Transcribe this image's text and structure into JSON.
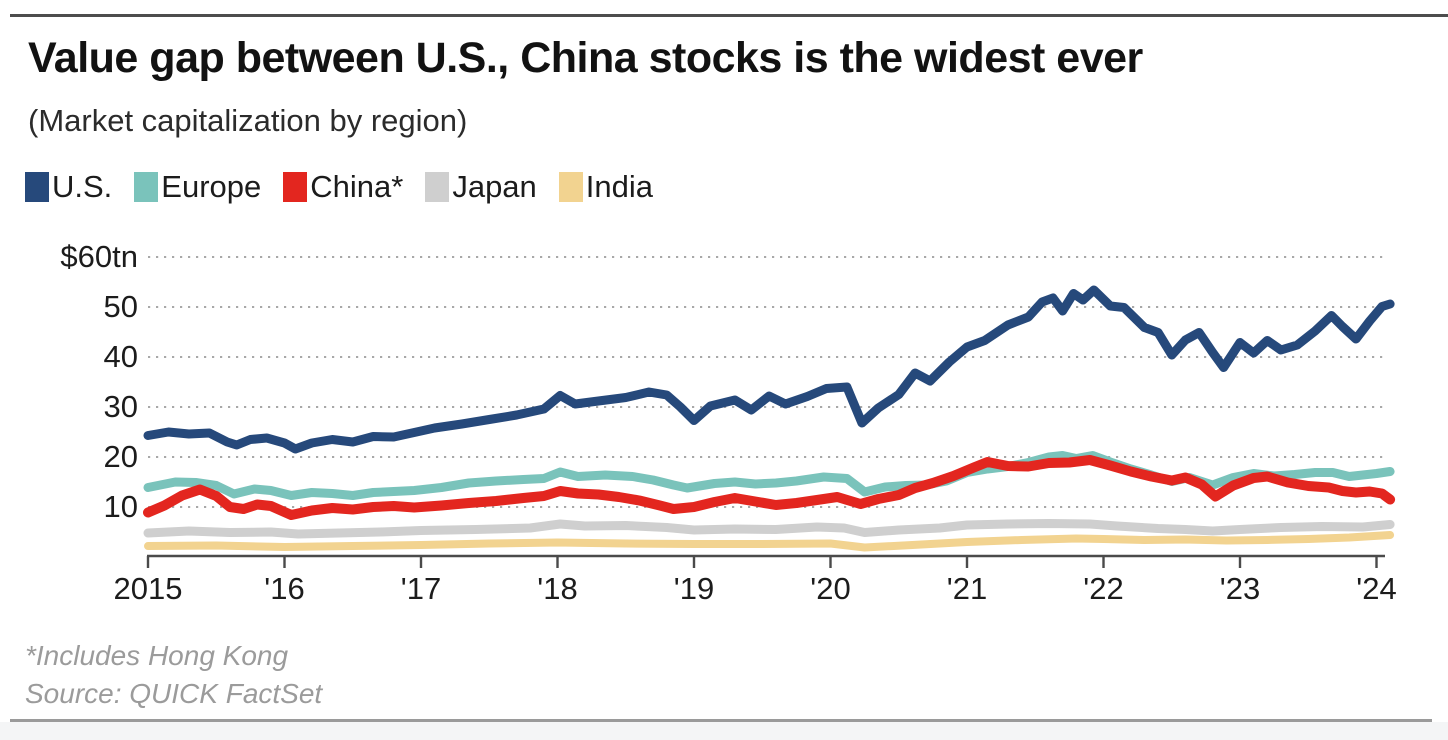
{
  "page": {
    "title": "Value gap between U.S., China stocks is the widest ever",
    "subtitle": "(Market capitalization by region)",
    "footnote": "*Includes Hong Kong",
    "source": "Source: QUICK FactSet"
  },
  "colors": {
    "us": "#26497B",
    "europe": "#7AC3BB",
    "china": "#E3261F",
    "japan": "#CFCFCF",
    "india": "#F2D390",
    "grid": "#A8A8A8",
    "axis": "#4A4A4A",
    "title_text": "#121212",
    "footnote_text": "#9B9B9B"
  },
  "legend": {
    "items": [
      {
        "id": "us",
        "label": "U.S.",
        "color": "#26497B"
      },
      {
        "id": "europe",
        "label": "Europe",
        "color": "#7AC3BB"
      },
      {
        "id": "china",
        "label": "China*",
        "color": "#E3261F"
      },
      {
        "id": "japan",
        "label": "Japan",
        "color": "#CFCFCF"
      },
      {
        "id": "india",
        "label": "India",
        "color": "#F2D390"
      }
    ]
  },
  "chart_data": {
    "type": "line",
    "title": "Value gap between U.S., China stocks is the widest ever",
    "subtitle": "(Market capitalization by region)",
    "unit": "trillion USD",
    "grid": "dotted-horizontal",
    "legend_position": "top",
    "y_axis": {
      "min": 0,
      "max": 62,
      "tick_values": [
        60,
        50,
        40,
        30,
        20,
        10
      ],
      "tick_labels": [
        "$60tn",
        "50",
        "40",
        "30",
        "20",
        "10"
      ]
    },
    "x_axis": {
      "min": 2015,
      "max": 2024.15,
      "tick_values": [
        2015,
        2016,
        2017,
        2018,
        2019,
        2020,
        2021,
        2022,
        2023,
        2024
      ],
      "tick_labels": [
        "2015",
        "'16",
        "'17",
        "'18",
        "'19",
        "'20",
        "'21",
        "'22",
        "'23",
        "'24"
      ]
    },
    "series": [
      {
        "id": "india",
        "name": "India",
        "color": "#F2D390",
        "stroke_width": 8,
        "points": [
          [
            2015.0,
            2.2
          ],
          [
            2015.5,
            2.3
          ],
          [
            2016.0,
            2.0
          ],
          [
            2016.5,
            2.2
          ],
          [
            2017.0,
            2.4
          ],
          [
            2017.5,
            2.7
          ],
          [
            2018.0,
            2.9
          ],
          [
            2018.5,
            2.7
          ],
          [
            2019.0,
            2.6
          ],
          [
            2019.5,
            2.6
          ],
          [
            2020.0,
            2.7
          ],
          [
            2020.25,
            1.9
          ],
          [
            2020.6,
            2.4
          ],
          [
            2021.0,
            3.0
          ],
          [
            2021.4,
            3.4
          ],
          [
            2021.8,
            3.7
          ],
          [
            2022.0,
            3.6
          ],
          [
            2022.3,
            3.4
          ],
          [
            2022.6,
            3.5
          ],
          [
            2022.9,
            3.3
          ],
          [
            2023.2,
            3.4
          ],
          [
            2023.5,
            3.6
          ],
          [
            2023.8,
            3.9
          ],
          [
            2024.1,
            4.4
          ]
        ]
      },
      {
        "id": "japan",
        "name": "Japan",
        "color": "#CFCFCF",
        "stroke_width": 9,
        "points": [
          [
            2015.0,
            4.8
          ],
          [
            2015.3,
            5.2
          ],
          [
            2015.6,
            4.9
          ],
          [
            2015.9,
            5.0
          ],
          [
            2016.1,
            4.6
          ],
          [
            2016.4,
            4.8
          ],
          [
            2016.7,
            5.0
          ],
          [
            2017.0,
            5.3
          ],
          [
            2017.4,
            5.5
          ],
          [
            2017.8,
            5.8
          ],
          [
            2018.02,
            6.6
          ],
          [
            2018.2,
            6.2
          ],
          [
            2018.5,
            6.3
          ],
          [
            2018.8,
            5.9
          ],
          [
            2019.0,
            5.4
          ],
          [
            2019.3,
            5.6
          ],
          [
            2019.6,
            5.5
          ],
          [
            2019.9,
            6.0
          ],
          [
            2020.1,
            5.8
          ],
          [
            2020.25,
            4.9
          ],
          [
            2020.5,
            5.4
          ],
          [
            2020.8,
            5.8
          ],
          [
            2021.0,
            6.4
          ],
          [
            2021.3,
            6.6
          ],
          [
            2021.6,
            6.7
          ],
          [
            2021.9,
            6.6
          ],
          [
            2022.1,
            6.2
          ],
          [
            2022.4,
            5.7
          ],
          [
            2022.6,
            5.5
          ],
          [
            2022.8,
            5.2
          ],
          [
            2023.0,
            5.5
          ],
          [
            2023.3,
            5.9
          ],
          [
            2023.6,
            6.1
          ],
          [
            2023.9,
            6.0
          ],
          [
            2024.1,
            6.5
          ]
        ]
      },
      {
        "id": "europe",
        "name": "Europe",
        "color": "#7AC3BB",
        "stroke_width": 9,
        "points": [
          [
            2015.0,
            13.9
          ],
          [
            2015.2,
            15.0
          ],
          [
            2015.35,
            14.9
          ],
          [
            2015.5,
            14.3
          ],
          [
            2015.63,
            12.6
          ],
          [
            2015.78,
            13.6
          ],
          [
            2015.9,
            13.3
          ],
          [
            2016.05,
            12.3
          ],
          [
            2016.2,
            12.9
          ],
          [
            2016.35,
            12.7
          ],
          [
            2016.5,
            12.3
          ],
          [
            2016.65,
            12.9
          ],
          [
            2016.8,
            13.1
          ],
          [
            2016.95,
            13.3
          ],
          [
            2017.15,
            13.9
          ],
          [
            2017.35,
            14.8
          ],
          [
            2017.55,
            15.2
          ],
          [
            2017.75,
            15.5
          ],
          [
            2017.9,
            15.7
          ],
          [
            2018.02,
            17.0
          ],
          [
            2018.15,
            16.1
          ],
          [
            2018.35,
            16.4
          ],
          [
            2018.55,
            16.1
          ],
          [
            2018.7,
            15.4
          ],
          [
            2018.85,
            14.4
          ],
          [
            2018.95,
            13.8
          ],
          [
            2019.15,
            14.7
          ],
          [
            2019.3,
            15.0
          ],
          [
            2019.45,
            14.6
          ],
          [
            2019.6,
            14.8
          ],
          [
            2019.75,
            15.2
          ],
          [
            2019.95,
            16.0
          ],
          [
            2020.12,
            15.7
          ],
          [
            2020.25,
            13.0
          ],
          [
            2020.4,
            14.0
          ],
          [
            2020.55,
            14.3
          ],
          [
            2020.7,
            14.4
          ],
          [
            2020.85,
            15.2
          ],
          [
            2021.0,
            16.9
          ],
          [
            2021.15,
            17.6
          ],
          [
            2021.3,
            18.1
          ],
          [
            2021.45,
            18.9
          ],
          [
            2021.6,
            20.0
          ],
          [
            2021.7,
            20.3
          ],
          [
            2021.8,
            19.7
          ],
          [
            2021.92,
            20.3
          ],
          [
            2022.05,
            19.0
          ],
          [
            2022.2,
            17.6
          ],
          [
            2022.35,
            16.4
          ],
          [
            2022.5,
            15.1
          ],
          [
            2022.63,
            15.9
          ],
          [
            2022.8,
            14.4
          ],
          [
            2022.95,
            15.9
          ],
          [
            2023.1,
            16.7
          ],
          [
            2023.25,
            16.2
          ],
          [
            2023.4,
            16.5
          ],
          [
            2023.55,
            16.9
          ],
          [
            2023.68,
            16.9
          ],
          [
            2023.8,
            16.1
          ],
          [
            2023.9,
            16.4
          ],
          [
            2024.0,
            16.7
          ],
          [
            2024.1,
            17.1
          ]
        ]
      },
      {
        "id": "china",
        "name": "China*",
        "color": "#E3261F",
        "stroke_width": 10,
        "points": [
          [
            2015.0,
            8.9
          ],
          [
            2015.12,
            10.3
          ],
          [
            2015.25,
            12.3
          ],
          [
            2015.38,
            13.5
          ],
          [
            2015.5,
            12.2
          ],
          [
            2015.6,
            10.0
          ],
          [
            2015.7,
            9.6
          ],
          [
            2015.8,
            10.5
          ],
          [
            2015.9,
            10.2
          ],
          [
            2016.05,
            8.4
          ],
          [
            2016.2,
            9.3
          ],
          [
            2016.35,
            9.8
          ],
          [
            2016.5,
            9.5
          ],
          [
            2016.65,
            10.0
          ],
          [
            2016.8,
            10.2
          ],
          [
            2016.95,
            9.9
          ],
          [
            2017.15,
            10.3
          ],
          [
            2017.35,
            10.8
          ],
          [
            2017.55,
            11.2
          ],
          [
            2017.75,
            11.8
          ],
          [
            2017.9,
            12.2
          ],
          [
            2018.02,
            13.2
          ],
          [
            2018.15,
            12.7
          ],
          [
            2018.3,
            12.5
          ],
          [
            2018.45,
            12.0
          ],
          [
            2018.6,
            11.3
          ],
          [
            2018.75,
            10.3
          ],
          [
            2018.85,
            9.6
          ],
          [
            2019.0,
            10.0
          ],
          [
            2019.15,
            11.0
          ],
          [
            2019.3,
            11.8
          ],
          [
            2019.45,
            11.1
          ],
          [
            2019.6,
            10.4
          ],
          [
            2019.75,
            10.8
          ],
          [
            2019.9,
            11.4
          ],
          [
            2020.05,
            12.0
          ],
          [
            2020.22,
            10.6
          ],
          [
            2020.35,
            11.6
          ],
          [
            2020.5,
            12.4
          ],
          [
            2020.62,
            13.8
          ],
          [
            2020.75,
            14.8
          ],
          [
            2020.9,
            16.2
          ],
          [
            2021.05,
            17.9
          ],
          [
            2021.15,
            19.0
          ],
          [
            2021.3,
            18.2
          ],
          [
            2021.45,
            18.1
          ],
          [
            2021.6,
            18.8
          ],
          [
            2021.75,
            18.9
          ],
          [
            2021.9,
            19.4
          ],
          [
            2022.05,
            18.3
          ],
          [
            2022.2,
            17.1
          ],
          [
            2022.35,
            16.1
          ],
          [
            2022.5,
            15.3
          ],
          [
            2022.6,
            15.9
          ],
          [
            2022.72,
            14.5
          ],
          [
            2022.82,
            12.1
          ],
          [
            2022.95,
            14.3
          ],
          [
            2023.1,
            15.8
          ],
          [
            2023.2,
            16.1
          ],
          [
            2023.35,
            14.9
          ],
          [
            2023.5,
            14.2
          ],
          [
            2023.65,
            13.9
          ],
          [
            2023.75,
            13.2
          ],
          [
            2023.85,
            12.9
          ],
          [
            2023.95,
            13.1
          ],
          [
            2024.04,
            12.7
          ],
          [
            2024.1,
            11.5
          ]
        ]
      },
      {
        "id": "us",
        "name": "U.S.",
        "color": "#26497B",
        "stroke_width": 9,
        "points": [
          [
            2015.0,
            24.3
          ],
          [
            2015.15,
            25.0
          ],
          [
            2015.3,
            24.6
          ],
          [
            2015.45,
            24.8
          ],
          [
            2015.58,
            23.0
          ],
          [
            2015.65,
            22.4
          ],
          [
            2015.75,
            23.5
          ],
          [
            2015.87,
            23.8
          ],
          [
            2016.0,
            22.8
          ],
          [
            2016.08,
            21.6
          ],
          [
            2016.2,
            22.8
          ],
          [
            2016.35,
            23.5
          ],
          [
            2016.5,
            23.0
          ],
          [
            2016.65,
            24.1
          ],
          [
            2016.8,
            24.0
          ],
          [
            2016.95,
            24.9
          ],
          [
            2017.1,
            25.8
          ],
          [
            2017.3,
            26.6
          ],
          [
            2017.5,
            27.5
          ],
          [
            2017.7,
            28.4
          ],
          [
            2017.9,
            29.6
          ],
          [
            2018.02,
            32.3
          ],
          [
            2018.13,
            30.6
          ],
          [
            2018.3,
            31.2
          ],
          [
            2018.5,
            31.9
          ],
          [
            2018.67,
            33.0
          ],
          [
            2018.8,
            32.4
          ],
          [
            2018.9,
            30.0
          ],
          [
            2019.0,
            27.3
          ],
          [
            2019.12,
            30.2
          ],
          [
            2019.3,
            31.4
          ],
          [
            2019.42,
            29.4
          ],
          [
            2019.55,
            32.2
          ],
          [
            2019.67,
            30.6
          ],
          [
            2019.83,
            32.1
          ],
          [
            2019.97,
            33.7
          ],
          [
            2020.12,
            34.0
          ],
          [
            2020.23,
            26.8
          ],
          [
            2020.35,
            29.8
          ],
          [
            2020.5,
            32.5
          ],
          [
            2020.62,
            36.8
          ],
          [
            2020.73,
            35.2
          ],
          [
            2020.87,
            39.0
          ],
          [
            2021.0,
            42.0
          ],
          [
            2021.13,
            43.3
          ],
          [
            2021.3,
            46.4
          ],
          [
            2021.45,
            48.0
          ],
          [
            2021.55,
            51.0
          ],
          [
            2021.63,
            51.8
          ],
          [
            2021.7,
            49.2
          ],
          [
            2021.78,
            52.7
          ],
          [
            2021.85,
            51.4
          ],
          [
            2021.93,
            53.4
          ],
          [
            2022.05,
            50.2
          ],
          [
            2022.15,
            49.9
          ],
          [
            2022.3,
            45.9
          ],
          [
            2022.4,
            44.9
          ],
          [
            2022.5,
            40.4
          ],
          [
            2022.6,
            43.4
          ],
          [
            2022.7,
            44.9
          ],
          [
            2022.8,
            40.9
          ],
          [
            2022.88,
            37.9
          ],
          [
            2023.0,
            42.9
          ],
          [
            2023.1,
            40.8
          ],
          [
            2023.2,
            43.3
          ],
          [
            2023.3,
            41.4
          ],
          [
            2023.42,
            42.4
          ],
          [
            2023.55,
            45.2
          ],
          [
            2023.67,
            48.3
          ],
          [
            2023.75,
            46.1
          ],
          [
            2023.85,
            43.6
          ],
          [
            2023.95,
            47.2
          ],
          [
            2024.04,
            50.1
          ],
          [
            2024.1,
            50.6
          ]
        ]
      }
    ]
  }
}
